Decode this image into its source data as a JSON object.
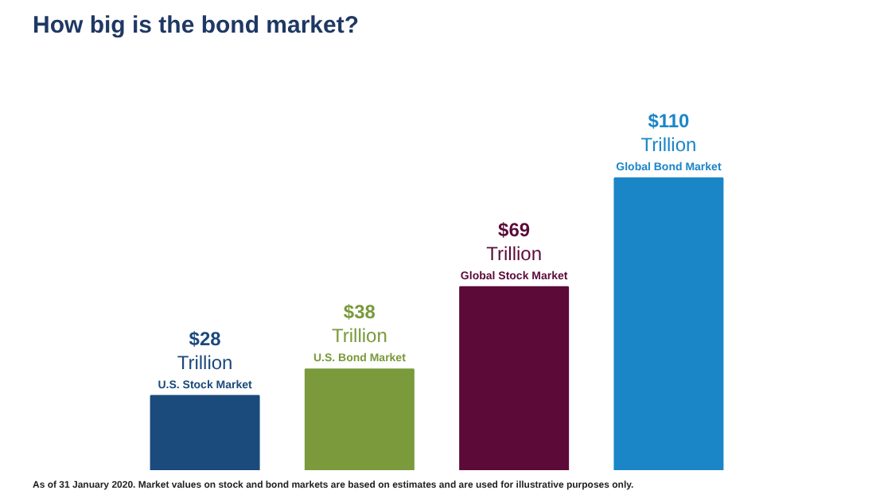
{
  "chart_data": {
    "type": "bar",
    "title": "How big is the bond market?",
    "categories": [
      "U.S. Stock Market",
      "U.S. Bond Market",
      "Global Stock Market",
      "Global Bond Market"
    ],
    "values": [
      28,
      38,
      69,
      110
    ],
    "colors": [
      "#1b4a7c",
      "#7a9a3c",
      "#5c0b38",
      "#1a86c8"
    ],
    "value_labels": [
      "$28\nTrillion",
      "$38\nTrillion",
      "$69\nTrillion",
      "$110\nTrillion"
    ],
    "annotations": [
      "As of 31 January 2020. Market values on stock and bond markets are based on estimates and are used for illustrative purposes only."
    ]
  }
}
